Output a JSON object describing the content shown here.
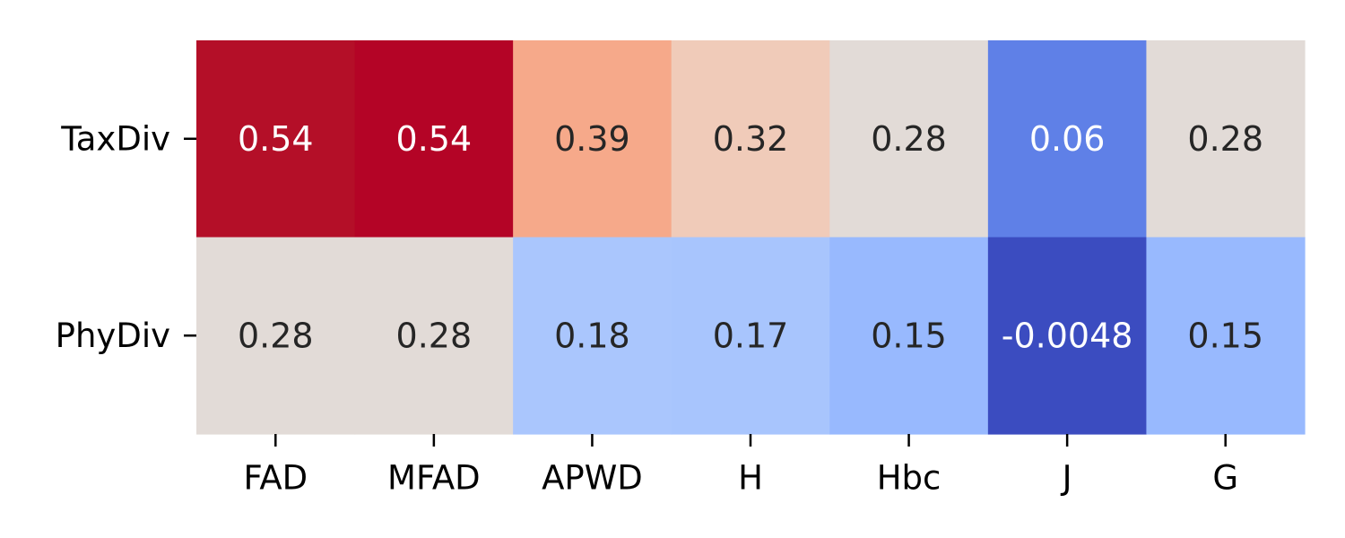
{
  "chart_data": {
    "type": "heatmap",
    "title": "",
    "xlabel": "",
    "ylabel": "",
    "columns": [
      "FAD",
      "MFAD",
      "APWD",
      "H",
      "Hbc",
      "J",
      "G"
    ],
    "rows": [
      "TaxDiv",
      "PhyDiv"
    ],
    "values": [
      [
        0.54,
        0.54,
        0.39,
        0.32,
        0.28,
        0.06,
        0.28
      ],
      [
        0.28,
        0.28,
        0.18,
        0.17,
        0.15,
        -0.0048,
        0.15
      ]
    ],
    "value_labels": [
      [
        "0.54",
        "0.54",
        "0.39",
        "0.32",
        "0.28",
        "0.06",
        "0.28"
      ],
      [
        "0.28",
        "0.28",
        "0.18",
        "0.17",
        "0.15",
        "-0.0048",
        "0.15"
      ]
    ],
    "cell_colors": [
      [
        "#b40f28",
        "#b40426",
        "#f6a98a",
        "#f0cbb9",
        "#e2dbd7",
        "#5f80e7",
        "#e2dbd7"
      ],
      [
        "#e2dbd7",
        "#e2dbd7",
        "#aac6fd",
        "#a8c5fd",
        "#98b9fe",
        "#3b4cc0",
        "#98b9fe"
      ]
    ],
    "text_colors": [
      [
        "#ffffff",
        "#ffffff",
        "#262626",
        "#262626",
        "#262626",
        "#ffffff",
        "#262626"
      ],
      [
        "#262626",
        "#262626",
        "#262626",
        "#262626",
        "#262626",
        "#ffffff",
        "#262626"
      ]
    ],
    "colormap": "coolwarm",
    "colorbar": false,
    "grid": false
  }
}
